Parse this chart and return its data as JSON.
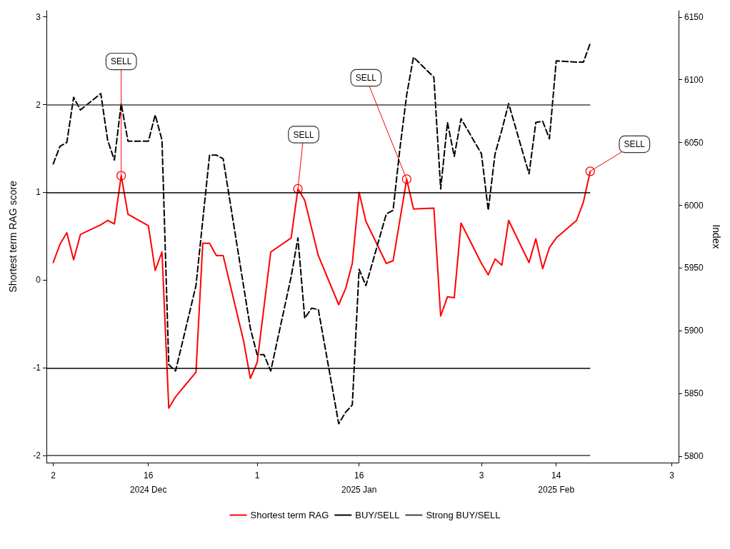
{
  "chart_data": {
    "type": "line",
    "ylabel": "Shortest term RAG score",
    "y2label": "Index",
    "xlim": [
      "2024-12-01",
      "2025-03-04"
    ],
    "xticks": [
      {
        "value": "2024-12-02",
        "label": "2"
      },
      {
        "value": "2024-12-16",
        "label": "16\n2024 Dec"
      },
      {
        "value": "2025-01-01",
        "label": "1"
      },
      {
        "value": "2025-01-16",
        "label": "16\n2025 Jan"
      },
      {
        "value": "2025-02-03",
        "label": "3"
      },
      {
        "value": "2025-02-14",
        "label": "14\n2025 Feb"
      },
      {
        "value": "2025-03-03",
        "label": "3"
      }
    ],
    "ylim": [
      -2.08,
      3.07
    ],
    "yticks": [
      -2,
      -1,
      0,
      1,
      2,
      3
    ],
    "y2lim": [
      5795,
      6155
    ],
    "y2ticks": [
      5800,
      5850,
      5900,
      5950,
      6000,
      6050,
      6100,
      6150
    ],
    "marker": "none",
    "legend": "bottom",
    "series": [
      {
        "name": "Shortest term RAG",
        "color": "#ff0000",
        "line_style": "solid",
        "x": [
          "2024-12-02",
          "2024-12-03",
          "2024-12-04",
          "2024-12-05",
          "2024-12-06",
          "2024-12-09",
          "2024-12-10",
          "2024-12-11",
          "2024-12-12",
          "2024-12-13",
          "2024-12-16",
          "2024-12-17",
          "2024-12-18",
          "2024-12-19",
          "2024-12-20",
          "2024-12-23",
          "2024-12-24",
          "2024-12-25",
          "2024-12-26",
          "2024-12-27",
          "2024-12-30",
          "2024-12-31",
          "2025-01-01",
          "2025-01-03",
          "2025-01-06",
          "2025-01-07",
          "2025-01-08",
          "2025-01-10",
          "2025-01-13",
          "2025-01-14",
          "2025-01-15",
          "2025-01-16",
          "2025-01-17",
          "2025-01-20",
          "2025-01-21",
          "2025-01-23",
          "2025-01-24",
          "2025-01-27",
          "2025-01-28",
          "2025-01-29",
          "2025-01-30",
          "2025-01-31",
          "2025-02-03",
          "2025-02-04",
          "2025-02-05",
          "2025-02-06",
          "2025-02-07",
          "2025-02-10",
          "2025-02-11",
          "2025-02-12",
          "2025-02-13",
          "2025-02-14",
          "2025-02-17",
          "2025-02-18",
          "2025-02-19"
        ],
        "values": [
          0.2,
          0.41,
          0.54,
          0.23,
          0.52,
          0.63,
          0.68,
          0.64,
          1.19,
          0.75,
          0.62,
          0.11,
          0.32,
          -1.46,
          -1.33,
          -1.05,
          0.42,
          0.42,
          0.28,
          0.28,
          -0.69,
          -1.12,
          -0.94,
          0.32,
          0.48,
          1.04,
          0.91,
          0.28,
          -0.28,
          -0.1,
          0.19,
          1.0,
          0.67,
          0.19,
          0.22,
          1.15,
          0.81,
          0.82,
          -0.41,
          -0.19,
          -0.2,
          0.65,
          0.19,
          0.06,
          0.24,
          0.17,
          0.68,
          0.2,
          0.47,
          0.13,
          0.37,
          0.48,
          0.68,
          0.89,
          1.24
        ]
      },
      {
        "color": "#000000",
        "line_style": "dashed",
        "axis": "y2",
        "x": [
          "2024-12-02",
          "2024-12-03",
          "2024-12-04",
          "2024-12-05",
          "2024-12-06",
          "2024-12-09",
          "2024-12-10",
          "2024-12-11",
          "2024-12-12",
          "2024-12-13",
          "2024-12-16",
          "2024-12-17",
          "2024-12-18",
          "2024-12-19",
          "2024-12-20",
          "2024-12-23",
          "2024-12-25",
          "2024-12-26",
          "2024-12-27",
          "2024-12-31",
          "2025-01-01",
          "2025-01-02",
          "2025-01-03",
          "2025-01-06",
          "2025-01-07",
          "2025-01-08",
          "2025-01-09",
          "2025-01-10",
          "2025-01-13",
          "2025-01-14",
          "2025-01-15",
          "2025-01-16",
          "2025-01-17",
          "2025-01-20",
          "2025-01-21",
          "2025-01-22",
          "2025-01-23",
          "2025-01-24",
          "2025-01-27",
          "2025-01-28",
          "2025-01-29",
          "2025-01-30",
          "2025-01-31",
          "2025-02-03",
          "2025-02-04",
          "2025-02-05",
          "2025-02-06",
          "2025-02-07",
          "2025-02-10",
          "2025-02-11",
          "2025-02-12",
          "2025-02-13",
          "2025-02-14",
          "2025-02-17",
          "2025-02-18",
          "2025-02-19"
        ],
        "values": [
          6033,
          6047,
          6050,
          6086,
          6076,
          6089,
          6052,
          6036,
          6081,
          6051,
          6051,
          6072,
          6052,
          5873,
          5868,
          5936,
          6040,
          6040,
          6037,
          5902,
          5881,
          5881,
          5868,
          5943,
          5974,
          5910,
          5918,
          5917,
          5826,
          5835,
          5841,
          5949,
          5936,
          5993,
          5996,
          6045,
          6088,
          6118,
          6102,
          6013,
          6066,
          6039,
          6069,
          6041,
          5996,
          6041,
          6060,
          6081,
          6025,
          6066,
          6067,
          6053,
          6115,
          6114,
          6114,
          6129
        ]
      }
    ],
    "ref_lines": [
      {
        "axis": "y",
        "value": 1,
        "label": "BUY/SELL",
        "color": "#000000"
      },
      {
        "axis": "y",
        "value": 2,
        "label": "Strong BUY/SELL",
        "color": "#404040"
      },
      {
        "axis": "y",
        "value": -1,
        "color": "#000000"
      },
      {
        "axis": "y",
        "value": -2,
        "color": "#404040"
      }
    ],
    "annotations": [
      {
        "text": "SELL",
        "x": "2024-12-12",
        "y": 1.19
      },
      {
        "text": "SELL",
        "x": "2025-01-07",
        "y": 1.04
      },
      {
        "text": "SELL",
        "x": "2025-01-23",
        "y": 1.15
      },
      {
        "text": "SELL",
        "x": "2025-02-19",
        "y": 1.24
      }
    ]
  }
}
